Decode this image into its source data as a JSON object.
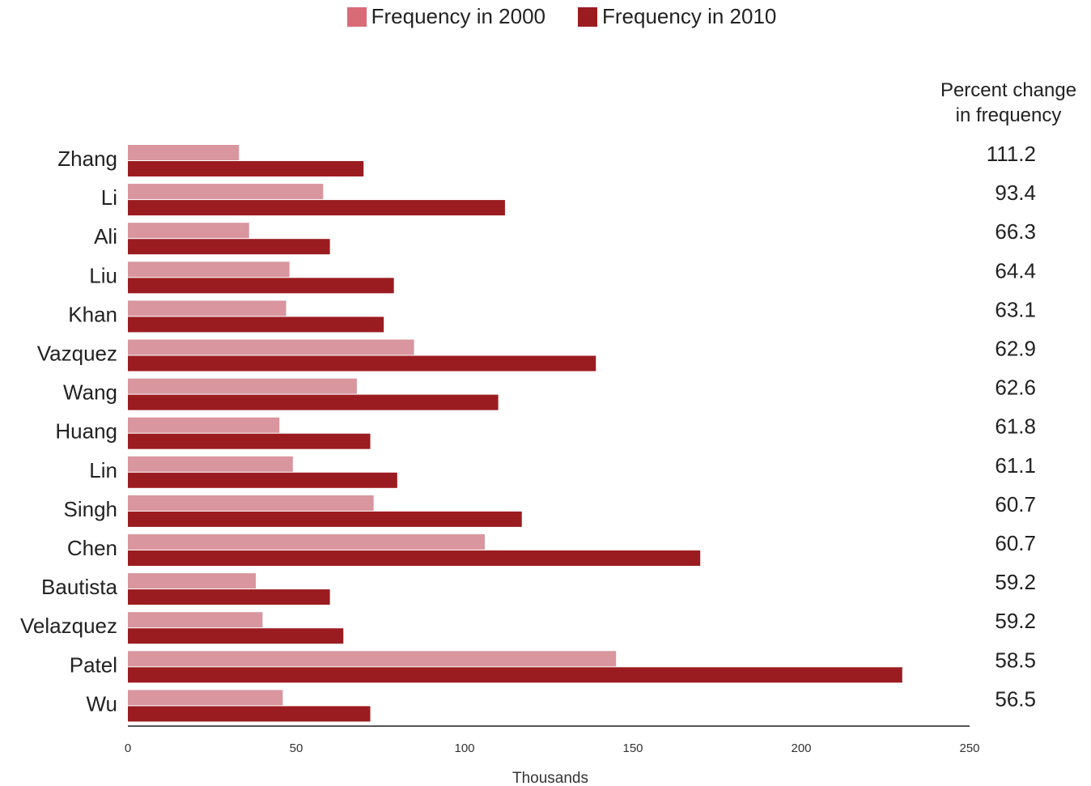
{
  "chart_data": {
    "type": "bar",
    "orientation": "horizontal",
    "categories": [
      "Zhang",
      "Li",
      "Ali",
      "Liu",
      "Khan",
      "Vazquez",
      "Wang",
      "Huang",
      "Lin",
      "Singh",
      "Chen",
      "Bautista",
      "Velazquez",
      "Patel",
      "Wu"
    ],
    "series": [
      {
        "name": "Frequency in 2000",
        "color": "#d9969e",
        "legend_color": "#d96b77",
        "values": [
          33,
          58,
          36,
          48,
          47,
          85,
          68,
          45,
          49,
          73,
          106,
          38,
          40,
          145,
          46
        ]
      },
      {
        "name": "Frequency in 2010",
        "color": "#9b1c20",
        "values": [
          70,
          112,
          60,
          79,
          76,
          139,
          110,
          72,
          80,
          117,
          170,
          60,
          64,
          230,
          72
        ]
      }
    ],
    "percent_change": {
      "header_line1": "Percent change",
      "header_line2": "in frequency",
      "values": [
        "111.2",
        "93.4",
        "66.3",
        "64.4",
        "63.1",
        "62.9",
        "62.6",
        "61.8",
        "61.1",
        "60.7",
        "60.7",
        "59.2",
        "59.2",
        "58.5",
        "56.5"
      ]
    },
    "xlabel": "Thousands",
    "ylabel": "",
    "xlim": [
      0,
      250
    ],
    "xticks": [
      "0",
      "50",
      "100",
      "150",
      "200",
      "250"
    ],
    "grid": false,
    "legend_position": "top-center"
  }
}
